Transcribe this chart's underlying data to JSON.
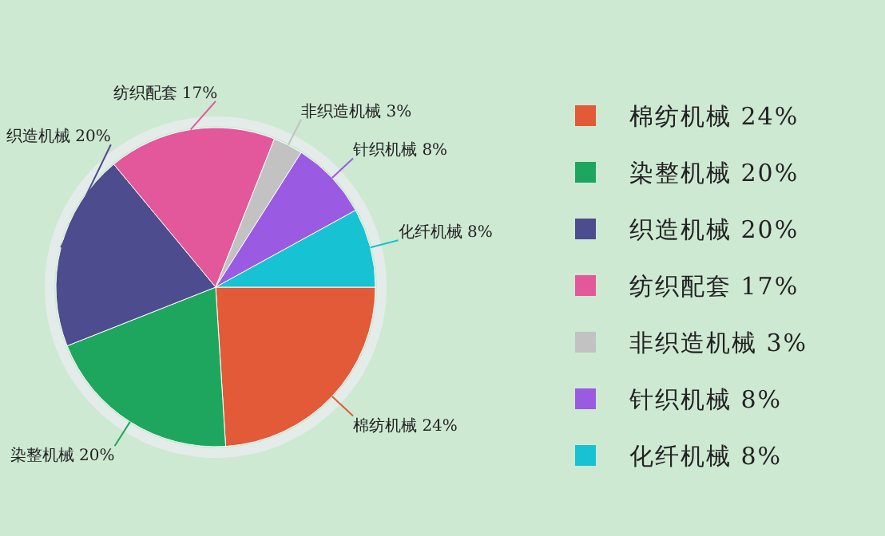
{
  "chart_data": {
    "type": "pie",
    "categories": [
      "棉纺机械",
      "染整机械",
      "织造机械",
      "纺织配套",
      "非织造机械",
      "针织机械",
      "化纤机械"
    ],
    "values": [
      24,
      20,
      20,
      17,
      3,
      8,
      8
    ],
    "value_labels": [
      "24%",
      "20%",
      "20%",
      "17%",
      "3%",
      "8%",
      "8%"
    ],
    "colors": [
      "#e25a38",
      "#1ea65e",
      "#4c4c8e",
      "#e2589a",
      "#c2c2c2",
      "#9a5ae2",
      "#17c2d2"
    ],
    "data_labels": true,
    "legend": "right"
  }
}
